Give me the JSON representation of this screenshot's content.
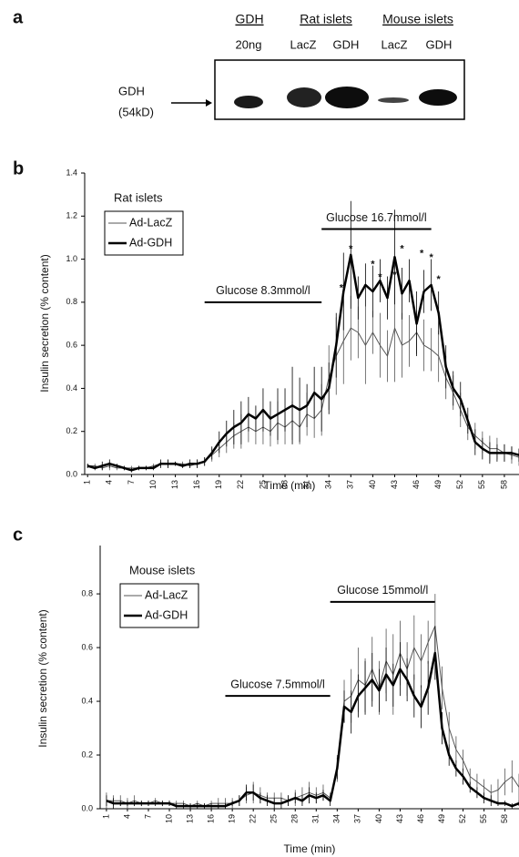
{
  "blot": {
    "panel_label": "a",
    "groups": [
      "GDH",
      "Rat islets",
      "Mouse islets"
    ],
    "lanes": [
      "20ng",
      "LacZ",
      "GDH",
      "LacZ",
      "GDH"
    ],
    "protein": "GDH",
    "size": "(54kD)"
  },
  "chart_data": [
    {
      "type": "line",
      "panel_label": "b",
      "legend_title": "Rat islets",
      "legend_position": "upper left",
      "x_label": "Time (min)",
      "y_label": "Insulin secretion (% content)",
      "x": [
        1,
        2,
        3,
        4,
        5,
        6,
        7,
        8,
        9,
        10,
        11,
        12,
        13,
        14,
        15,
        16,
        17,
        18,
        19,
        20,
        21,
        22,
        23,
        24,
        25,
        26,
        27,
        28,
        29,
        30,
        31,
        32,
        33,
        34,
        35,
        36,
        37,
        38,
        39,
        40,
        41,
        42,
        43,
        44,
        45,
        46,
        47,
        48,
        49,
        50,
        51,
        52,
        53,
        54,
        55,
        56,
        57,
        58,
        59,
        60
      ],
      "xlim": [
        0.6,
        60
      ],
      "xticks": [
        1,
        4,
        7,
        10,
        13,
        16,
        19,
        22,
        25,
        28,
        31,
        34,
        37,
        40,
        43,
        46,
        49,
        52,
        55,
        58
      ],
      "ylim": [
        0,
        1.4
      ],
      "yticks": [
        {
          "value": 0,
          "label": "0.0"
        },
        0.2,
        0.4,
        0.6,
        0.8,
        {
          "value": 1,
          "label": "1.0"
        },
        1.2,
        1.4
      ],
      "series": [
        {
          "name": "Ad-LacZ",
          "color": "#555555",
          "line_width": 1,
          "values": [
            0.04,
            0.04,
            0.03,
            0.04,
            0.03,
            0.03,
            0.03,
            0.03,
            0.03,
            0.04,
            0.05,
            0.05,
            0.05,
            0.05,
            0.04,
            0.05,
            0.06,
            0.09,
            0.12,
            0.15,
            0.18,
            0.2,
            0.22,
            0.2,
            0.22,
            0.2,
            0.24,
            0.22,
            0.25,
            0.22,
            0.28,
            0.26,
            0.3,
            0.45,
            0.55,
            0.62,
            0.68,
            0.66,
            0.6,
            0.66,
            0.6,
            0.55,
            0.68,
            0.6,
            0.62,
            0.66,
            0.6,
            0.58,
            0.55,
            0.45,
            0.38,
            0.3,
            0.22,
            0.18,
            0.15,
            0.12,
            0.12,
            0.1,
            0.09,
            0.08
          ],
          "errors": [
            0.01,
            0.01,
            0.01,
            0.02,
            0.01,
            0.01,
            0.01,
            0.01,
            0.01,
            0.01,
            0.01,
            0.02,
            0.01,
            0.01,
            0.01,
            0.02,
            0.02,
            0.03,
            0.04,
            0.05,
            0.06,
            0.08,
            0.07,
            0.06,
            0.08,
            0.07,
            0.1,
            0.08,
            0.09,
            0.08,
            0.1,
            0.09,
            0.12,
            0.15,
            0.18,
            0.2,
            0.15,
            0.12,
            0.18,
            0.1,
            0.15,
            0.12,
            0.25,
            0.15,
            0.12,
            0.1,
            0.12,
            0.1,
            0.12,
            0.1,
            0.08,
            0.08,
            0.06,
            0.06,
            0.05,
            0.06,
            0.05,
            0.04,
            0.04,
            0.04
          ]
        },
        {
          "name": "Ad-GDH",
          "color": "#000000",
          "line_width": 2.5,
          "values": [
            0.04,
            0.03,
            0.04,
            0.05,
            0.04,
            0.03,
            0.02,
            0.03,
            0.03,
            0.03,
            0.05,
            0.05,
            0.05,
            0.04,
            0.05,
            0.05,
            0.06,
            0.1,
            0.15,
            0.19,
            0.22,
            0.24,
            0.28,
            0.26,
            0.3,
            0.26,
            0.28,
            0.3,
            0.32,
            0.3,
            0.32,
            0.38,
            0.35,
            0.4,
            0.6,
            0.85,
            1.02,
            0.82,
            0.88,
            0.85,
            0.9,
            0.82,
            1.01,
            0.84,
            0.9,
            0.7,
            0.85,
            0.88,
            0.75,
            0.5,
            0.4,
            0.35,
            0.25,
            0.15,
            0.12,
            0.1,
            0.1,
            0.1,
            0.1,
            0.09
          ],
          "errors": [
            0.01,
            0.01,
            0.02,
            0.02,
            0.01,
            0.01,
            0.01,
            0.01,
            0.01,
            0.01,
            0.02,
            0.02,
            0.01,
            0.01,
            0.02,
            0.02,
            0.02,
            0.03,
            0.05,
            0.06,
            0.08,
            0.1,
            0.08,
            0.06,
            0.1,
            0.08,
            0.12,
            0.1,
            0.18,
            0.15,
            0.1,
            0.12,
            0.15,
            0.12,
            0.15,
            0.18,
            0.25,
            0.1,
            0.1,
            0.12,
            0.1,
            0.1,
            0.22,
            0.12,
            0.1,
            0.15,
            0.1,
            0.12,
            0.1,
            0.1,
            0.08,
            0.08,
            0.06,
            0.06,
            0.05,
            0.05,
            0.04,
            0.04,
            0.03,
            0.03
          ]
        }
      ],
      "annotations": [
        {
          "text": "Glucose 8.3mmol/l",
          "x": [
            17,
            33
          ],
          "y": 0.8
        },
        {
          "text": "Glucose 16.7mmol/l",
          "x": [
            33,
            48
          ],
          "y": 1.14
        }
      ],
      "asterisks": {
        "text": "*",
        "x": [
          35.7,
          37,
          40,
          41,
          43,
          44,
          46.7,
          48,
          49
        ],
        "y": [
          0.84,
          1.02,
          0.95,
          0.89,
          0.9,
          1.02,
          1,
          0.98,
          0.88
        ]
      }
    },
    {
      "type": "line",
      "panel_label": "c",
      "legend_title": "Mouse islets",
      "legend_position": "upper left",
      "x_label": "Time (min)",
      "y_label": "Insulin secretion (% content)",
      "x": [
        1,
        2,
        3,
        4,
        5,
        6,
        7,
        8,
        9,
        10,
        11,
        12,
        13,
        14,
        15,
        16,
        17,
        18,
        19,
        20,
        21,
        22,
        23,
        24,
        25,
        26,
        27,
        28,
        29,
        30,
        31,
        32,
        33,
        34,
        35,
        36,
        37,
        38,
        39,
        40,
        41,
        42,
        43,
        44,
        45,
        46,
        47,
        48,
        49,
        50,
        51,
        52,
        53,
        54,
        55,
        56,
        57,
        58,
        59,
        60
      ],
      "xlim": [
        0.1,
        60
      ],
      "xticks": [
        1,
        4,
        7,
        10,
        13,
        16,
        19,
        22,
        25,
        28,
        31,
        34,
        37,
        40,
        43,
        46,
        49,
        52,
        55,
        58
      ],
      "ylim": [
        0,
        0.98
      ],
      "yticks": [
        {
          "value": 0,
          "label": "0.0"
        },
        0.2,
        0.4,
        0.6,
        0.8
      ],
      "series": [
        {
          "name": "Ad-LacZ",
          "color": "#555555",
          "line_width": 1,
          "values": [
            0.03,
            0.03,
            0.03,
            0.02,
            0.03,
            0.02,
            0.02,
            0.03,
            0.02,
            0.02,
            0.02,
            0.02,
            0.01,
            0.02,
            0.01,
            0.02,
            0.02,
            0.02,
            0.02,
            0.03,
            0.05,
            0.06,
            0.05,
            0.04,
            0.04,
            0.04,
            0.03,
            0.04,
            0.05,
            0.06,
            0.05,
            0.06,
            0.04,
            0.15,
            0.4,
            0.42,
            0.48,
            0.46,
            0.52,
            0.45,
            0.55,
            0.5,
            0.58,
            0.52,
            0.6,
            0.55,
            0.62,
            0.68,
            0.45,
            0.3,
            0.22,
            0.18,
            0.12,
            0.1,
            0.08,
            0.06,
            0.07,
            0.1,
            0.12,
            0.08
          ],
          "errors": [
            0.03,
            0.02,
            0.02,
            0.02,
            0.02,
            0.01,
            0.01,
            0.01,
            0.01,
            0.01,
            0.01,
            0.01,
            0.01,
            0.01,
            0.01,
            0.01,
            0.02,
            0.02,
            0.02,
            0.02,
            0.03,
            0.04,
            0.03,
            0.02,
            0.02,
            0.02,
            0.02,
            0.03,
            0.03,
            0.04,
            0.03,
            0.03,
            0.02,
            0.05,
            0.08,
            0.1,
            0.12,
            0.1,
            0.12,
            0.1,
            0.12,
            0.15,
            0.12,
            0.1,
            0.12,
            0.1,
            0.08,
            0.12,
            0.08,
            0.06,
            0.05,
            0.04,
            0.03,
            0.03,
            0.03,
            0.03,
            0.04,
            0.05,
            0.06,
            0.05
          ]
        },
        {
          "name": "Ad-GDH",
          "color": "#000000",
          "line_width": 2.5,
          "values": [
            0.03,
            0.02,
            0.02,
            0.02,
            0.02,
            0.02,
            0.02,
            0.02,
            0.02,
            0.02,
            0.01,
            0.01,
            0.01,
            0.01,
            0.01,
            0.01,
            0.01,
            0.01,
            0.02,
            0.03,
            0.06,
            0.06,
            0.04,
            0.03,
            0.02,
            0.02,
            0.03,
            0.04,
            0.03,
            0.05,
            0.04,
            0.05,
            0.03,
            0.15,
            0.38,
            0.36,
            0.42,
            0.45,
            0.48,
            0.44,
            0.5,
            0.46,
            0.52,
            0.48,
            0.42,
            0.38,
            0.45,
            0.58,
            0.3,
            0.2,
            0.15,
            0.12,
            0.08,
            0.06,
            0.04,
            0.03,
            0.02,
            0.02,
            0.01,
            0.02
          ],
          "errors": [
            0.02,
            0.02,
            0.01,
            0.01,
            0.01,
            0.01,
            0.01,
            0.01,
            0.01,
            0.01,
            0.01,
            0.01,
            0.01,
            0.01,
            0.01,
            0.01,
            0.01,
            0.01,
            0.01,
            0.02,
            0.03,
            0.03,
            0.02,
            0.02,
            0.02,
            0.02,
            0.02,
            0.02,
            0.02,
            0.03,
            0.02,
            0.02,
            0.02,
            0.04,
            0.06,
            0.08,
            0.08,
            0.1,
            0.1,
            0.08,
            0.1,
            0.08,
            0.1,
            0.08,
            0.08,
            0.08,
            0.1,
            0.1,
            0.06,
            0.04,
            0.03,
            0.03,
            0.02,
            0.02,
            0.02,
            0.02,
            0.01,
            0.01,
            0.01,
            0.01
          ]
        }
      ],
      "annotations": [
        {
          "text": "Glucose 7.5mmol/l",
          "x": [
            18,
            33
          ],
          "y": 0.42
        },
        {
          "text": "Glucose 15mmol/l",
          "x": [
            33,
            48
          ],
          "y": 0.77
        }
      ]
    }
  ]
}
